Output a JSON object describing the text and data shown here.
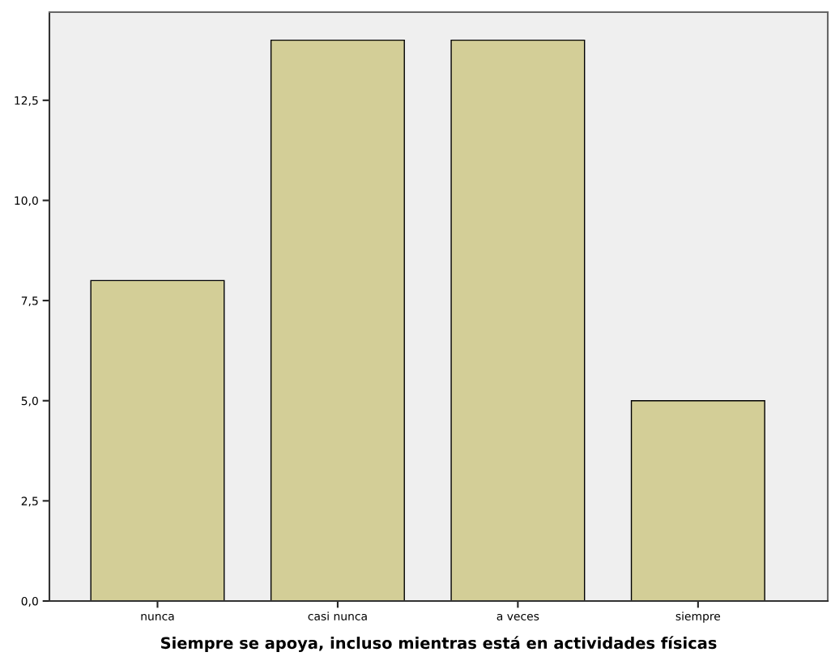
{
  "chart_data": {
    "type": "bar",
    "xlabel": "Siempre se apoya, incluso mientras está en actividades físicas",
    "categories": [
      "nunca",
      "casi nunca",
      "a veces",
      "siempre"
    ],
    "values": [
      8,
      14,
      14,
      5
    ],
    "color": "#d3ce97",
    "ylim": [
      0,
      14.7
    ],
    "yticks": [
      {
        "value": 0,
        "label": "0,0"
      },
      {
        "value": 2.5,
        "label": "2,5"
      },
      {
        "value": 5,
        "label": "5,0"
      },
      {
        "value": 7.5,
        "label": "7,5"
      },
      {
        "value": 10,
        "label": "10,0"
      },
      {
        "value": 12.5,
        "label": "12,5"
      }
    ],
    "grid": false,
    "legend": false
  }
}
